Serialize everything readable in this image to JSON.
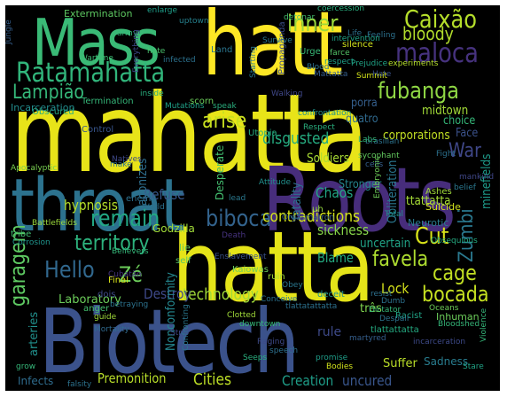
{
  "cloud": {
    "words": [
      {
        "text": "mahatta",
        "color": "#e8e419"
      },
      {
        "text": "Roots",
        "color": "#472d7b"
      },
      {
        "text": "hatta",
        "color": "#e5e419"
      },
      {
        "text": "Biotech",
        "color": "#3b528b"
      },
      {
        "text": "throat",
        "color": "#2c728e"
      },
      {
        "text": "Mass",
        "color": "#3aba76"
      },
      {
        "text": "hatt",
        "color": "#fde725"
      },
      {
        "text": "Ratamahatta",
        "color": "#31b57b"
      },
      {
        "text": "Caixão",
        "color": "#b5de2b"
      },
      {
        "text": "maloca",
        "color": "#46327e"
      },
      {
        "text": "fubanga",
        "color": "#8fd744"
      },
      {
        "text": "Lampião",
        "color": "#35b779"
      },
      {
        "text": "inner",
        "color": "#9bd93c"
      },
      {
        "text": "bloody",
        "color": "#b2dd2c"
      },
      {
        "text": "arise",
        "color": "#c8e020"
      },
      {
        "text": "remain",
        "color": "#22a884"
      },
      {
        "text": "biboca",
        "color": "#33638d"
      },
      {
        "text": "territory",
        "color": "#2db27d"
      },
      {
        "text": "Hello",
        "color": "#31688e"
      },
      {
        "text": "Zé",
        "color": "#6ccd5a"
      },
      {
        "text": "garagem",
        "color": "#5ec962"
      },
      {
        "text": "contradictions",
        "color": "#d2e21b"
      },
      {
        "text": "Cut",
        "color": "#d8e219"
      },
      {
        "text": "War",
        "color": "#3f4788"
      },
      {
        "text": "favela",
        "color": "#addc30"
      },
      {
        "text": "cage",
        "color": "#c2df23"
      },
      {
        "text": "bocada",
        "color": "#c5e021"
      },
      {
        "text": "Zumbi",
        "color": "#2a788e"
      },
      {
        "text": "technology",
        "color": "#a0da39"
      },
      {
        "text": "Lock",
        "color": "#d5e21a"
      },
      {
        "text": "Destroy",
        "color": "#3e4989"
      },
      {
        "text": "Cities",
        "color": "#bddf26"
      },
      {
        "text": "Creation",
        "color": "#1f9e89"
      },
      {
        "text": "uncured",
        "color": "#39568c"
      },
      {
        "text": "Premonition",
        "color": "#b8de29"
      },
      {
        "text": "disgusted",
        "color": "#26ad81"
      },
      {
        "text": "Chaos",
        "color": "#22a785"
      },
      {
        "text": "Refuse",
        "color": "#38598c"
      },
      {
        "text": "hypnosis",
        "color": "#b5de2b"
      },
      {
        "text": "sickness",
        "color": "#87d549"
      },
      {
        "text": "Blame",
        "color": "#25ac82"
      },
      {
        "text": "uncertain",
        "color": "#20a386"
      },
      {
        "text": "Obliteration",
        "color": "#2a768e"
      },
      {
        "text": "fatality",
        "color": "#2c718e"
      },
      {
        "text": "Soldiers",
        "color": "#a8db34"
      },
      {
        "text": "Stronger",
        "color": "#25858e"
      },
      {
        "text": "midtown",
        "color": "#a2da37"
      },
      {
        "text": "porra",
        "color": "#355f8d"
      },
      {
        "text": "quatro",
        "color": "#306a8e"
      },
      {
        "text": "corporations",
        "color": "#c2df23"
      },
      {
        "text": "choice",
        "color": "#35b779"
      },
      {
        "text": "Face",
        "color": "#3b528b"
      },
      {
        "text": "ttattatta",
        "color": "#a5db36"
      },
      {
        "text": "minefields",
        "color": "#1e9b8a"
      },
      {
        "text": "Extermination",
        "color": "#5ec962"
      },
      {
        "text": "Godzilla",
        "color": "#a0da39"
      },
      {
        "text": "Nonconformity",
        "color": "#24868e"
      },
      {
        "text": "agonizes",
        "color": "#2e6e8e"
      },
      {
        "text": "Desperate",
        "color": "#44bf70"
      },
      {
        "text": "arteries",
        "color": "#21908d"
      },
      {
        "text": "Laboratory",
        "color": "#6ccd5a"
      },
      {
        "text": "rule",
        "color": "#3e4a89"
      },
      {
        "text": "três",
        "color": "#7fd34e"
      },
      {
        "text": "Neurotic",
        "color": "#297b8e"
      },
      {
        "text": "Inhuman",
        "color": "#6ccd5a"
      },
      {
        "text": "Suffer",
        "color": "#bade28"
      },
      {
        "text": "Sadness",
        "color": "#287c8e"
      },
      {
        "text": "Infects",
        "color": "#2f6c8e"
      },
      {
        "text": "Ashes",
        "color": "#a0da39"
      },
      {
        "text": "Suicide",
        "color": "#d0e11c"
      },
      {
        "text": "tribe",
        "color": "#42be71"
      },
      {
        "text": "dois",
        "color": "#3e4a89"
      },
      {
        "text": "uh",
        "color": "#95d840"
      },
      {
        "text": "Total",
        "color": "#1f948c"
      },
      {
        "text": "Kaiowas",
        "color": "#6ece58"
      },
      {
        "text": "enemy",
        "color": "#2d708e"
      },
      {
        "text": "hate",
        "color": "#4ac16d"
      },
      {
        "text": "Land",
        "color": "#2b758e"
      },
      {
        "text": "silence",
        "color": "#d0e11c"
      },
      {
        "text": "Blood",
        "color": "#2c728e"
      },
      {
        "text": "Wartime",
        "color": "#3dbc74"
      },
      {
        "text": "army",
        "color": "#35b779"
      },
      {
        "text": "uptown",
        "color": "#26818e"
      },
      {
        "text": "enlarge",
        "color": "#1f9e89"
      },
      {
        "text": "detonar",
        "color": "#46c06f"
      },
      {
        "text": "coercession",
        "color": "#2ab07f"
      },
      {
        "text": "Propaganda",
        "color": "#3c4f8a"
      },
      {
        "text": "Survive",
        "color": "#2a778e"
      },
      {
        "text": "Urge",
        "color": "#38b977"
      },
      {
        "text": "farce",
        "color": "#54c568"
      },
      {
        "text": "respect",
        "color": "#1fa088"
      },
      {
        "text": "Prejudice",
        "color": "#20a386"
      },
      {
        "text": "Feeling",
        "color": "#2c718e"
      },
      {
        "text": "Summit",
        "color": "#d2e21b"
      },
      {
        "text": "experiments",
        "color": "#b5de2b"
      },
      {
        "text": "Mattatta",
        "color": "#355f8d"
      },
      {
        "text": "Life",
        "color": "#2d708e"
      },
      {
        "text": "Hate",
        "color": "#3b528b"
      },
      {
        "text": "Obscured",
        "color": "#28ae80"
      },
      {
        "text": "Control",
        "color": "#39568c"
      },
      {
        "text": "Termination",
        "color": "#35b779"
      },
      {
        "text": "Mutations",
        "color": "#1fa188"
      },
      {
        "text": "speak",
        "color": "#2ab07f"
      },
      {
        "text": "Walking",
        "color": "#3f4788"
      },
      {
        "text": "Utopia",
        "color": "#27ad81"
      },
      {
        "text": "brasilian",
        "color": "#2c728e"
      },
      {
        "text": "sycophant",
        "color": "#63cb5f"
      },
      {
        "text": "Apocalyptic",
        "color": "#7ad151"
      },
      {
        "text": "Incarceration",
        "color": "#228c8d"
      },
      {
        "text": "incarceration",
        "color": "#3e4a89"
      },
      {
        "text": "Natives",
        "color": "#3e4989"
      },
      {
        "text": "Battlefields",
        "color": "#9bd93c"
      },
      {
        "text": "lie",
        "color": "#63cb5f"
      },
      {
        "text": "self",
        "color": "#56c667"
      },
      {
        "text": "anger",
        "color": "#44bf70"
      },
      {
        "text": "Death",
        "color": "#46337f"
      },
      {
        "text": "Orgasmatron",
        "color": "#365c8d"
      },
      {
        "text": "Enslavement",
        "color": "#3b528b"
      },
      {
        "text": "ruin",
        "color": "#a2da37"
      },
      {
        "text": "Final",
        "color": "#d8e219"
      },
      {
        "text": "Obey",
        "color": "#2a778e"
      },
      {
        "text": "deceit",
        "color": "#1f948c"
      },
      {
        "text": "resist",
        "color": "#2d708e"
      },
      {
        "text": "Dumb",
        "color": "#2c728e"
      },
      {
        "text": "Bloodshed",
        "color": "#35b779"
      },
      {
        "text": "Racist",
        "color": "#20a386"
      },
      {
        "text": "Oceans",
        "color": "#6ece58"
      },
      {
        "text": "Despair",
        "color": "#2c728e"
      },
      {
        "text": "Dictator",
        "color": "#35b779"
      },
      {
        "text": "tlattattatta",
        "color": "#25ac82"
      },
      {
        "text": "martyred",
        "color": "#355f8d"
      },
      {
        "text": "promise",
        "color": "#1f9e89"
      },
      {
        "text": "Bodies",
        "color": "#d0e11c"
      },
      {
        "text": "Raging",
        "color": "#3e4a89"
      },
      {
        "text": "speech",
        "color": "#2d708e"
      },
      {
        "text": "Seeps",
        "color": "#2ab07f"
      },
      {
        "text": "Clotted",
        "color": "#a0da39"
      },
      {
        "text": "downtown",
        "color": "#35b779"
      },
      {
        "text": "tlattatattatta",
        "color": "#2c718e"
      },
      {
        "text": "Strip",
        "color": "#3f4788"
      },
      {
        "text": "Mortality",
        "color": "#306a8e"
      },
      {
        "text": "guide",
        "color": "#a0da39"
      },
      {
        "text": "grow",
        "color": "#35b779"
      },
      {
        "text": "falsity",
        "color": "#2c728e"
      },
      {
        "text": "Stare",
        "color": "#20a386"
      },
      {
        "text": "Fight",
        "color": "#2c718e"
      },
      {
        "text": "Conceive",
        "color": "#2c718e"
      },
      {
        "text": "Respect",
        "color": "#2ab07f"
      },
      {
        "text": "Jungle",
        "color": "#355f8d"
      },
      {
        "text": "lead",
        "color": "#2a788e"
      },
      {
        "text": "Violence",
        "color": "#35b779"
      },
      {
        "text": "Believers",
        "color": "#35b779"
      },
      {
        "text": "betraying",
        "color": "#2c728e"
      },
      {
        "text": "Corrosion",
        "color": "#1f948c"
      },
      {
        "text": "World",
        "color": "#2c728e"
      },
      {
        "text": "mankind",
        "color": "#3f4788"
      },
      {
        "text": "belief",
        "color": "#2a778e"
      },
      {
        "text": "cells",
        "color": "#355f8d"
      },
      {
        "text": "infected",
        "color": "#2c718e"
      },
      {
        "text": "confrontation",
        "color": "#1f948c"
      },
      {
        "text": "Everything",
        "color": "#3e4a89"
      },
      {
        "text": "intervention",
        "color": "#20a386"
      },
      {
        "text": "Starting",
        "color": "#2a778e"
      },
      {
        "text": "inside",
        "color": "#2ab07f"
      },
      {
        "text": "Labs",
        "color": "#35b779"
      },
      {
        "text": "make",
        "color": "#2c728e"
      },
      {
        "text": "Cubatão",
        "color": "#46337f"
      },
      {
        "text": "Embryonic",
        "color": "#6ece58"
      },
      {
        "text": "Obsequious",
        "color": "#25ac82"
      },
      {
        "text": "Attitude",
        "color": "#21908d"
      },
      {
        "text": "scorn",
        "color": "#6ccd5a"
      },
      {
        "text": "Confronting",
        "color": "#2a778e"
      }
    ]
  }
}
